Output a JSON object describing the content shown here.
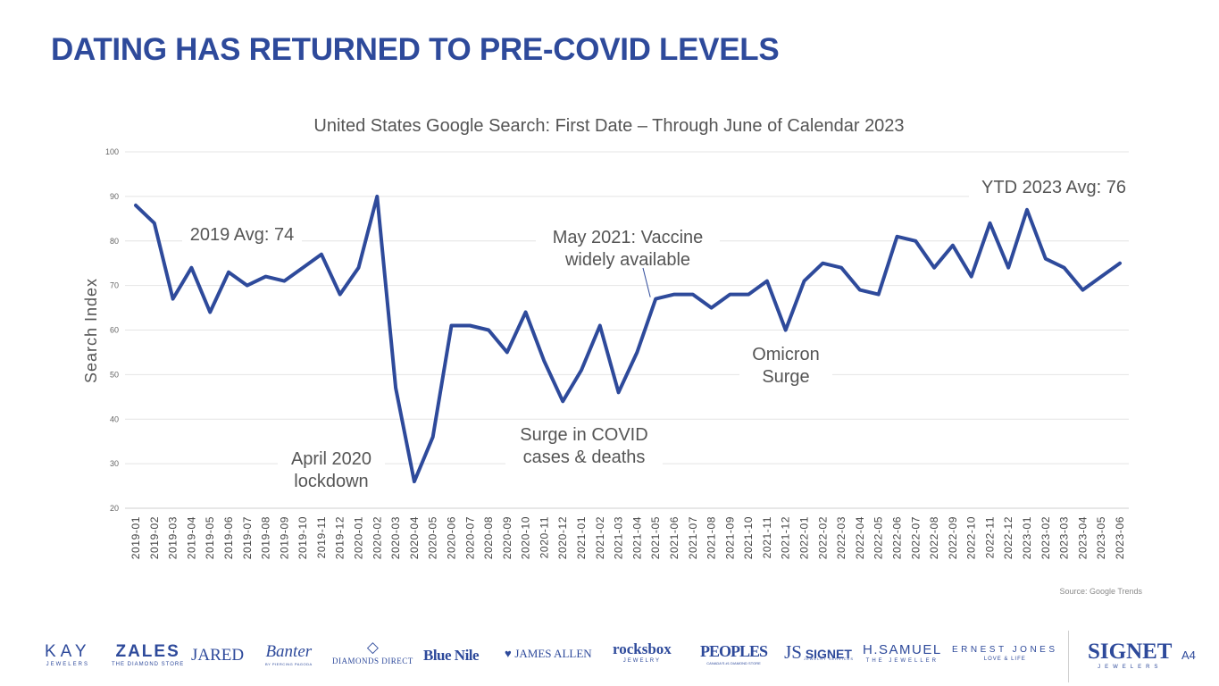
{
  "slide": {
    "title": "DATING HAS RETURNED TO PRE-COVID LEVELS",
    "source": "Source: Google Trends",
    "page_number": "A4"
  },
  "colors": {
    "brand": "#2e4a9b",
    "line": "#2e4a9b",
    "grid": "#e4e4e4",
    "text": "#555555"
  },
  "chart_data": {
    "type": "line",
    "title": "United States Google Search: First Date – Through June of Calendar 2023",
    "xlabel": "",
    "ylabel": "Search Index",
    "ylim": [
      20,
      100
    ],
    "yticks": [
      20,
      30,
      40,
      50,
      60,
      70,
      80,
      90,
      100
    ],
    "grid": true,
    "categories": [
      "2019-01",
      "2019-02",
      "2019-03",
      "2019-04",
      "2019-05",
      "2019-06",
      "2019-07",
      "2019-08",
      "2019-09",
      "2019-10",
      "2019-11",
      "2019-12",
      "2020-01",
      "2020-02",
      "2020-03",
      "2020-04",
      "2020-05",
      "2020-06",
      "2020-07",
      "2020-08",
      "2020-09",
      "2020-10",
      "2020-11",
      "2020-12",
      "2021-01",
      "2021-02",
      "2021-03",
      "2021-04",
      "2021-05",
      "2021-06",
      "2021-07",
      "2021-08",
      "2021-09",
      "2021-10",
      "2021-11",
      "2021-12",
      "2022-01",
      "2022-02",
      "2022-03",
      "2022-04",
      "2022-05",
      "2022-06",
      "2022-07",
      "2022-08",
      "2022-09",
      "2022-10",
      "2022-11",
      "2022-12",
      "2023-01",
      "2023-02",
      "2023-03",
      "2023-04",
      "2023-05",
      "2023-06"
    ],
    "series": [
      {
        "name": "First Date",
        "values": [
          88,
          84,
          67,
          74,
          64,
          73,
          70,
          72,
          71,
          74,
          77,
          68,
          74,
          90,
          47,
          26,
          36,
          61,
          61,
          60,
          55,
          64,
          53,
          44,
          51,
          61,
          46,
          55,
          67,
          68,
          68,
          65,
          68,
          68,
          71,
          60,
          71,
          75,
          74,
          69,
          68,
          81,
          80,
          74,
          79,
          72,
          84,
          74,
          87,
          76,
          74,
          69,
          72,
          75
        ]
      }
    ],
    "annotations": [
      {
        "text": "2019 Avg: 74",
        "lines": [
          "2019 Avg: 74"
        ]
      },
      {
        "text": "April 2020 lockdown",
        "lines": [
          "April 2020",
          "lockdown"
        ]
      },
      {
        "text": "Surge in COVID cases & deaths",
        "lines": [
          "Surge in COVID",
          "cases & deaths"
        ]
      },
      {
        "text": "May 2021: Vaccine widely available",
        "lines": [
          "May 2021: Vaccine",
          "widely available"
        ]
      },
      {
        "text": "Omicron Surge",
        "lines": [
          "Omicron",
          "Surge"
        ]
      },
      {
        "text": "YTD 2023 Avg: 76",
        "lines": [
          "YTD 2023 Avg: 76"
        ]
      }
    ]
  },
  "logos": [
    {
      "name": "KAY",
      "sub": "JEWELERS"
    },
    {
      "name": "ZALES",
      "sub": "THE DIAMOND STORE"
    },
    {
      "name": "JARED",
      "sub": ""
    },
    {
      "name": "Banter",
      "sub": "BY PIERCING PAGODA"
    },
    {
      "name": "DIAMONDS DIRECT",
      "sub": ""
    },
    {
      "name": "Blue Nile",
      "sub": ""
    },
    {
      "name": "JAMES ALLEN",
      "sub": ""
    },
    {
      "name": "rocksbox",
      "sub": "JEWELRY"
    },
    {
      "name": "PEOPLES",
      "sub": "CANADA'S #1 DIAMOND STORE"
    },
    {
      "name": "SIGNET",
      "sub": "JEWELRY SERVICES"
    },
    {
      "name": "H.SAMUEL",
      "sub": "THE JEWELLER"
    },
    {
      "name": "ERNEST JONES",
      "sub": "LOVE & LIFE"
    },
    {
      "name": "SIGNET",
      "sub": "JEWELERS"
    }
  ]
}
